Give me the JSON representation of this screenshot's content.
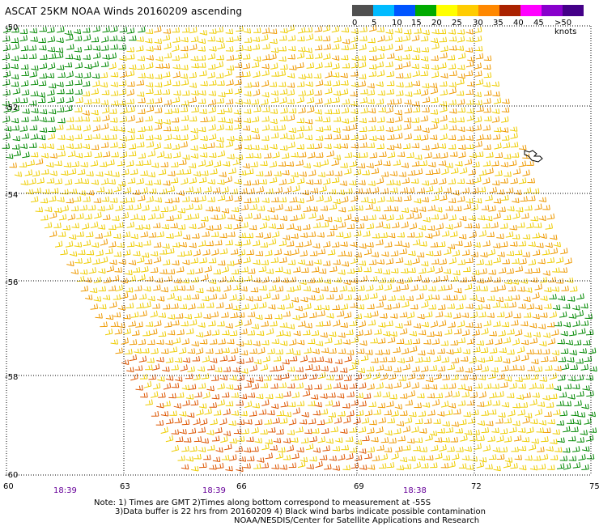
{
  "title": "ASCAT 25KM NOAA Winds 20160209 ascending",
  "legend": {
    "colors": [
      "#505050",
      "#00bbff",
      "#0055ff",
      "#00aa00",
      "#ffff00",
      "#ffcc00",
      "#ff8800",
      "#aa2200",
      "#ff00ff",
      "#8800cc",
      "#440088"
    ],
    "labels": [
      "0",
      "5",
      "10",
      "15",
      "20",
      "25",
      "30",
      "35",
      "40",
      "45",
      ">50 knots"
    ]
  },
  "lat_labels": [
    "-50",
    "-52",
    "-54",
    "-56",
    "-58",
    "-60"
  ],
  "lon_labels": [
    "60",
    "63",
    "66",
    "69",
    "72",
    "75"
  ],
  "time_labels": [
    "18:39",
    "18:39",
    "18:38"
  ],
  "notes": [
    "Note: 1) Times are GMT 2)Times along bottom correspond to measurement at -55S",
    "3)Data buffer is 22 hrs from 20160209 4) Black wind barbs indicate possible contamination",
    "NOAA/NESDIS/Center for Satellite Applications and Research"
  ],
  "colors": {
    "grid": "#000000",
    "time_label": "#660099",
    "green_barb": "#008800",
    "yellow_barb": "#eecc00",
    "orange_barb": "#ee9900",
    "red_orange_barb": "#dd5500"
  }
}
